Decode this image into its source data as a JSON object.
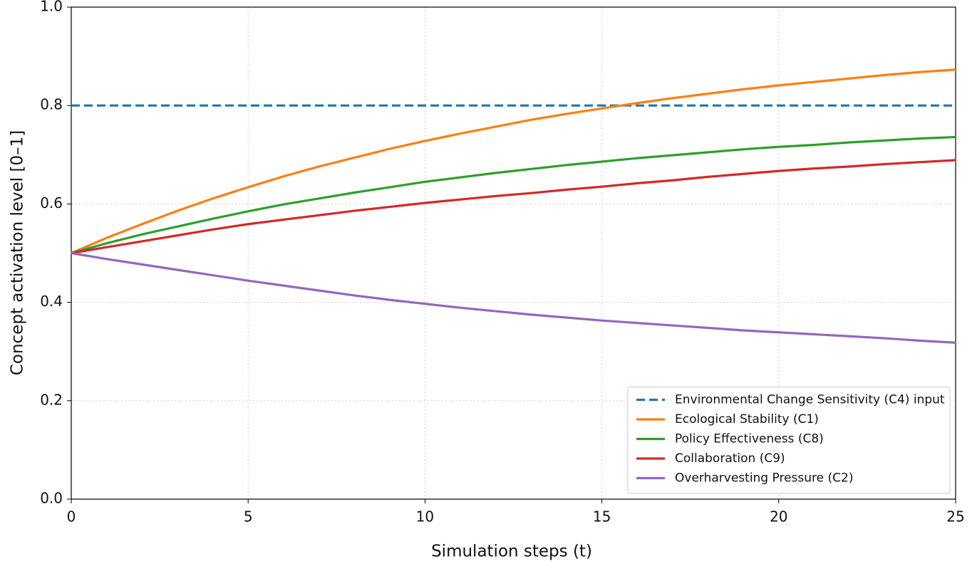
{
  "chart_data": {
    "type": "line",
    "xlabel": "Simulation steps (t)",
    "ylabel": "Concept activation level [0–1]",
    "x": [
      0,
      1,
      2,
      3,
      4,
      5,
      6,
      7,
      8,
      9,
      10,
      11,
      12,
      13,
      14,
      15,
      16,
      17,
      18,
      19,
      20,
      21,
      22,
      23,
      24,
      25
    ],
    "series": [
      {
        "name": "Environmental Change Sensitivity (C4) input",
        "color": "#1f77b4",
        "dashed": true,
        "values": [
          0.8,
          0.8,
          0.8,
          0.8,
          0.8,
          0.8,
          0.8,
          0.8,
          0.8,
          0.8,
          0.8,
          0.8,
          0.8,
          0.8,
          0.8,
          0.8,
          0.8,
          0.8,
          0.8,
          0.8,
          0.8,
          0.8,
          0.8,
          0.8,
          0.8,
          0.8
        ]
      },
      {
        "name": "Ecological Stability (C1)",
        "color": "#ff7f0e",
        "values": [
          0.5,
          0.531,
          0.559,
          0.586,
          0.611,
          0.634,
          0.656,
          0.676,
          0.694,
          0.712,
          0.728,
          0.743,
          0.757,
          0.771,
          0.783,
          0.794,
          0.805,
          0.815,
          0.824,
          0.833,
          0.841,
          0.848,
          0.855,
          0.862,
          0.868,
          0.873
        ]
      },
      {
        "name": "Policy Effectiveness (C8)",
        "color": "#2ca02c",
        "values": [
          0.5,
          0.52,
          0.538,
          0.554,
          0.57,
          0.585,
          0.599,
          0.611,
          0.623,
          0.634,
          0.645,
          0.654,
          0.663,
          0.671,
          0.679,
          0.686,
          0.693,
          0.699,
          0.705,
          0.711,
          0.716,
          0.72,
          0.725,
          0.729,
          0.733,
          0.736
        ]
      },
      {
        "name": "Collaboration (C9)",
        "color": "#d62728",
        "values": [
          0.5,
          0.512,
          0.524,
          0.536,
          0.548,
          0.559,
          0.568,
          0.577,
          0.586,
          0.594,
          0.602,
          0.609,
          0.616,
          0.622,
          0.629,
          0.635,
          0.642,
          0.648,
          0.655,
          0.661,
          0.667,
          0.672,
          0.676,
          0.681,
          0.685,
          0.689
        ]
      },
      {
        "name": "Overharvesting Pressure (C2)",
        "color": "#9467bd",
        "values": [
          0.5,
          0.488,
          0.477,
          0.466,
          0.455,
          0.444,
          0.434,
          0.424,
          0.414,
          0.405,
          0.397,
          0.389,
          0.382,
          0.375,
          0.369,
          0.363,
          0.358,
          0.353,
          0.348,
          0.343,
          0.339,
          0.335,
          0.331,
          0.327,
          0.322,
          0.318
        ]
      }
    ],
    "xlim": [
      0,
      25
    ],
    "xticks": [
      0,
      5,
      10,
      15,
      20,
      25
    ],
    "ylim": [
      0,
      1
    ],
    "yticks": [
      {
        "value": 0,
        "label": "0.0"
      },
      0.2,
      0.4,
      0.6,
      0.8,
      {
        "value": 1,
        "label": "1.0"
      }
    ],
    "grid": true,
    "legend": "lower right"
  }
}
